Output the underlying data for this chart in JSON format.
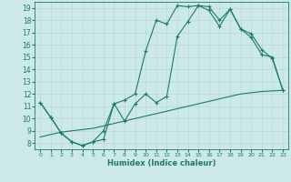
{
  "xlabel": "Humidex (Indice chaleur)",
  "background_color": "#cce8e8",
  "line_color": "#1a7a6e",
  "grid_color": "#b8d8d8",
  "xlim": [
    -0.5,
    23.5
  ],
  "ylim": [
    7.5,
    19.5
  ],
  "yticks": [
    8,
    9,
    10,
    11,
    12,
    13,
    14,
    15,
    16,
    17,
    18,
    19
  ],
  "xticks": [
    0,
    1,
    2,
    3,
    4,
    5,
    6,
    7,
    8,
    9,
    10,
    11,
    12,
    13,
    14,
    15,
    16,
    17,
    18,
    19,
    20,
    21,
    22,
    23
  ],
  "curve1_x": [
    0,
    1,
    2,
    3,
    4,
    5,
    6,
    7,
    8,
    9,
    10,
    11,
    12,
    13,
    14,
    15,
    16,
    17,
    18,
    19,
    20,
    21,
    22,
    23
  ],
  "curve1_y": [
    11.3,
    10.1,
    8.8,
    8.1,
    7.8,
    8.1,
    9.0,
    11.2,
    11.5,
    12.0,
    15.5,
    18.0,
    17.7,
    19.2,
    19.1,
    19.2,
    18.8,
    17.5,
    18.9,
    17.3,
    16.6,
    15.2,
    15.0,
    12.3
  ],
  "curve2_x": [
    0,
    1,
    2,
    3,
    4,
    5,
    6,
    7,
    8,
    9,
    10,
    11,
    12,
    13,
    14,
    15,
    16,
    17,
    18,
    19,
    20,
    21,
    22,
    23
  ],
  "curve2_y": [
    11.3,
    10.1,
    8.8,
    8.1,
    7.8,
    8.1,
    8.3,
    11.2,
    9.8,
    11.2,
    12.0,
    11.3,
    11.8,
    16.7,
    17.9,
    19.2,
    19.1,
    18.0,
    18.9,
    17.3,
    16.9,
    15.6,
    14.9,
    12.3
  ],
  "curve3_x": [
    0,
    23
  ],
  "curve3_y": [
    8.5,
    12.3
  ],
  "curve3_full_x": [
    0,
    1,
    2,
    3,
    4,
    5,
    6,
    7,
    8,
    9,
    10,
    11,
    12,
    13,
    14,
    15,
    16,
    17,
    18,
    19,
    20,
    21,
    22,
    23
  ],
  "curve3_full_y": [
    8.5,
    8.7,
    8.9,
    9.0,
    9.1,
    9.2,
    9.4,
    9.6,
    9.8,
    10.0,
    10.2,
    10.4,
    10.6,
    10.8,
    11.0,
    11.2,
    11.4,
    11.6,
    11.8,
    12.0,
    12.1,
    12.2,
    12.25,
    12.3
  ]
}
